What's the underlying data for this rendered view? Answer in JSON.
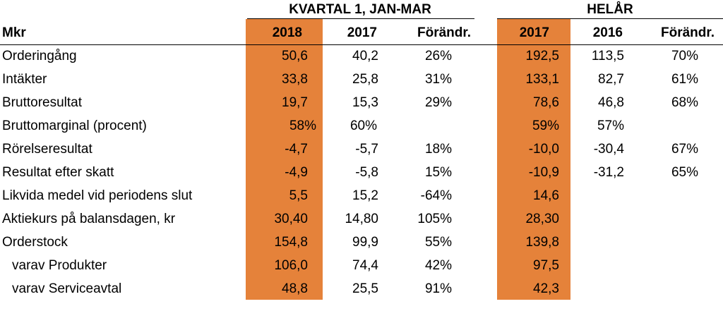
{
  "group_headers": {
    "quarter": "KVARTAL 1,  JAN-MAR",
    "year": "HELÅR"
  },
  "columns": {
    "label": "Mkr",
    "q_2018": "2018",
    "q_2017": "2017",
    "q_change": "Förändr.",
    "y_2017": "2017",
    "y_2016": "2016",
    "y_change": "Förändr."
  },
  "highlight_color": "#E5823A",
  "rows": [
    {
      "label": "Orderingång",
      "q2018": "50,6",
      "q2017": "40,2",
      "qchg": "26%",
      "y2017": "192,5",
      "y2016": "113,5",
      "ychg": "70%"
    },
    {
      "label": "Intäkter",
      "q2018": "33,8",
      "q2017": "25,8",
      "qchg": "31%",
      "y2017": "133,1",
      "y2016": "82,7",
      "ychg": "61%"
    },
    {
      "label": "Bruttoresultat",
      "q2018": "19,7",
      "q2017": "15,3",
      "qchg": "29%",
      "y2017": "78,6",
      "y2016": "46,8",
      "ychg": "68%"
    },
    {
      "label": "Bruttomarginal (procent)",
      "q2018": "58%",
      "q2017": "60%",
      "qchg": "",
      "y2017": "59%",
      "y2016": "57%",
      "ychg": ""
    },
    {
      "label": "Rörelseresultat",
      "q2018": "-4,7",
      "q2017": "-5,7",
      "qchg": "18%",
      "y2017": "-10,0",
      "y2016": "-30,4",
      "ychg": "67%"
    },
    {
      "label": "Resultat efter skatt",
      "q2018": "-4,9",
      "q2017": "-5,8",
      "qchg": "15%",
      "y2017": "-10,9",
      "y2016": "-31,2",
      "ychg": "65%"
    },
    {
      "label": "Likvida medel vid periodens slut",
      "q2018": "5,5",
      "q2017": "15,2",
      "qchg": "-64%",
      "y2017": "14,6",
      "y2016": "",
      "ychg": ""
    },
    {
      "label": "Aktiekurs på balansdagen, kr",
      "q2018": "30,40",
      "q2017": "14,80",
      "qchg": "105%",
      "y2017": "28,30",
      "y2016": "",
      "ychg": ""
    },
    {
      "label": "Orderstock",
      "q2018": "154,8",
      "q2017": "99,9",
      "qchg": "55%",
      "y2017": "139,8",
      "y2016": "",
      "ychg": ""
    },
    {
      "label": "varav Produkter",
      "q2018": "106,0",
      "q2017": "74,4",
      "qchg": "42%",
      "y2017": "97,5",
      "y2016": "",
      "ychg": ""
    },
    {
      "label": "varav Serviceavtal",
      "q2018": "48,8",
      "q2017": "25,5",
      "qchg": "91%",
      "y2017": "42,3",
      "y2016": "",
      "ychg": ""
    }
  ]
}
